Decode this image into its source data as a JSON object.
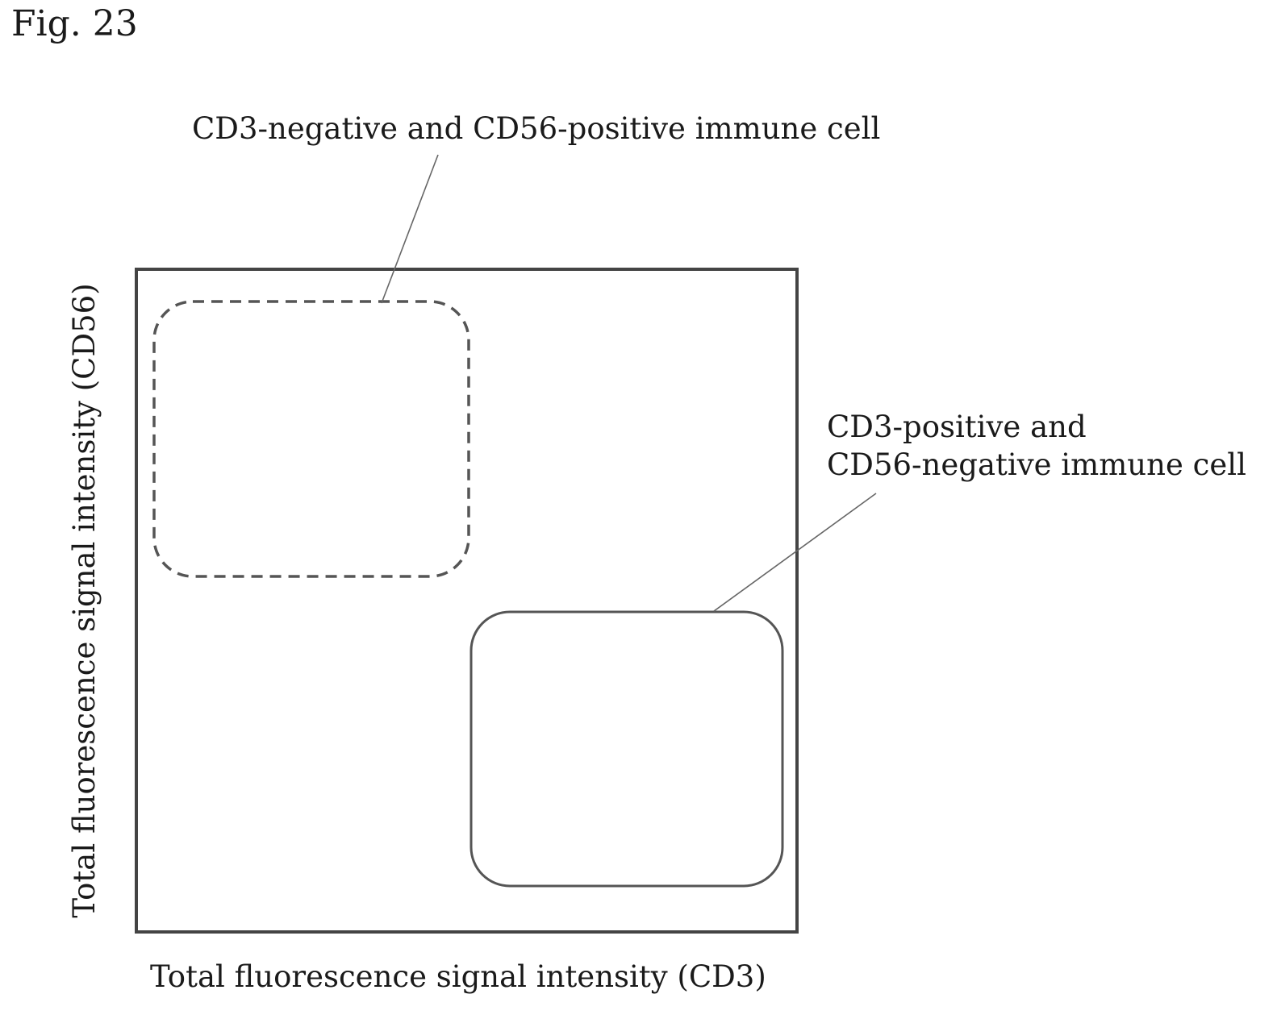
{
  "figure": {
    "label": "Fig. 23"
  },
  "axes": {
    "x_label": "Total fluorescence signal intensity (CD3)",
    "y_label": "Total fluorescence signal intensity (CD56)"
  },
  "gates": {
    "top_left": {
      "label": "CD3-negative and CD56-positive immune cell",
      "style": "dashed"
    },
    "bottom_right": {
      "label_line1": "CD3-positive and",
      "label_line2": "CD56-negative immune cell",
      "style": "solid"
    }
  },
  "colors": {
    "frame": "#444444",
    "gate_stroke": "#555555",
    "leader": "#666666",
    "text": "#1a1a1a"
  }
}
